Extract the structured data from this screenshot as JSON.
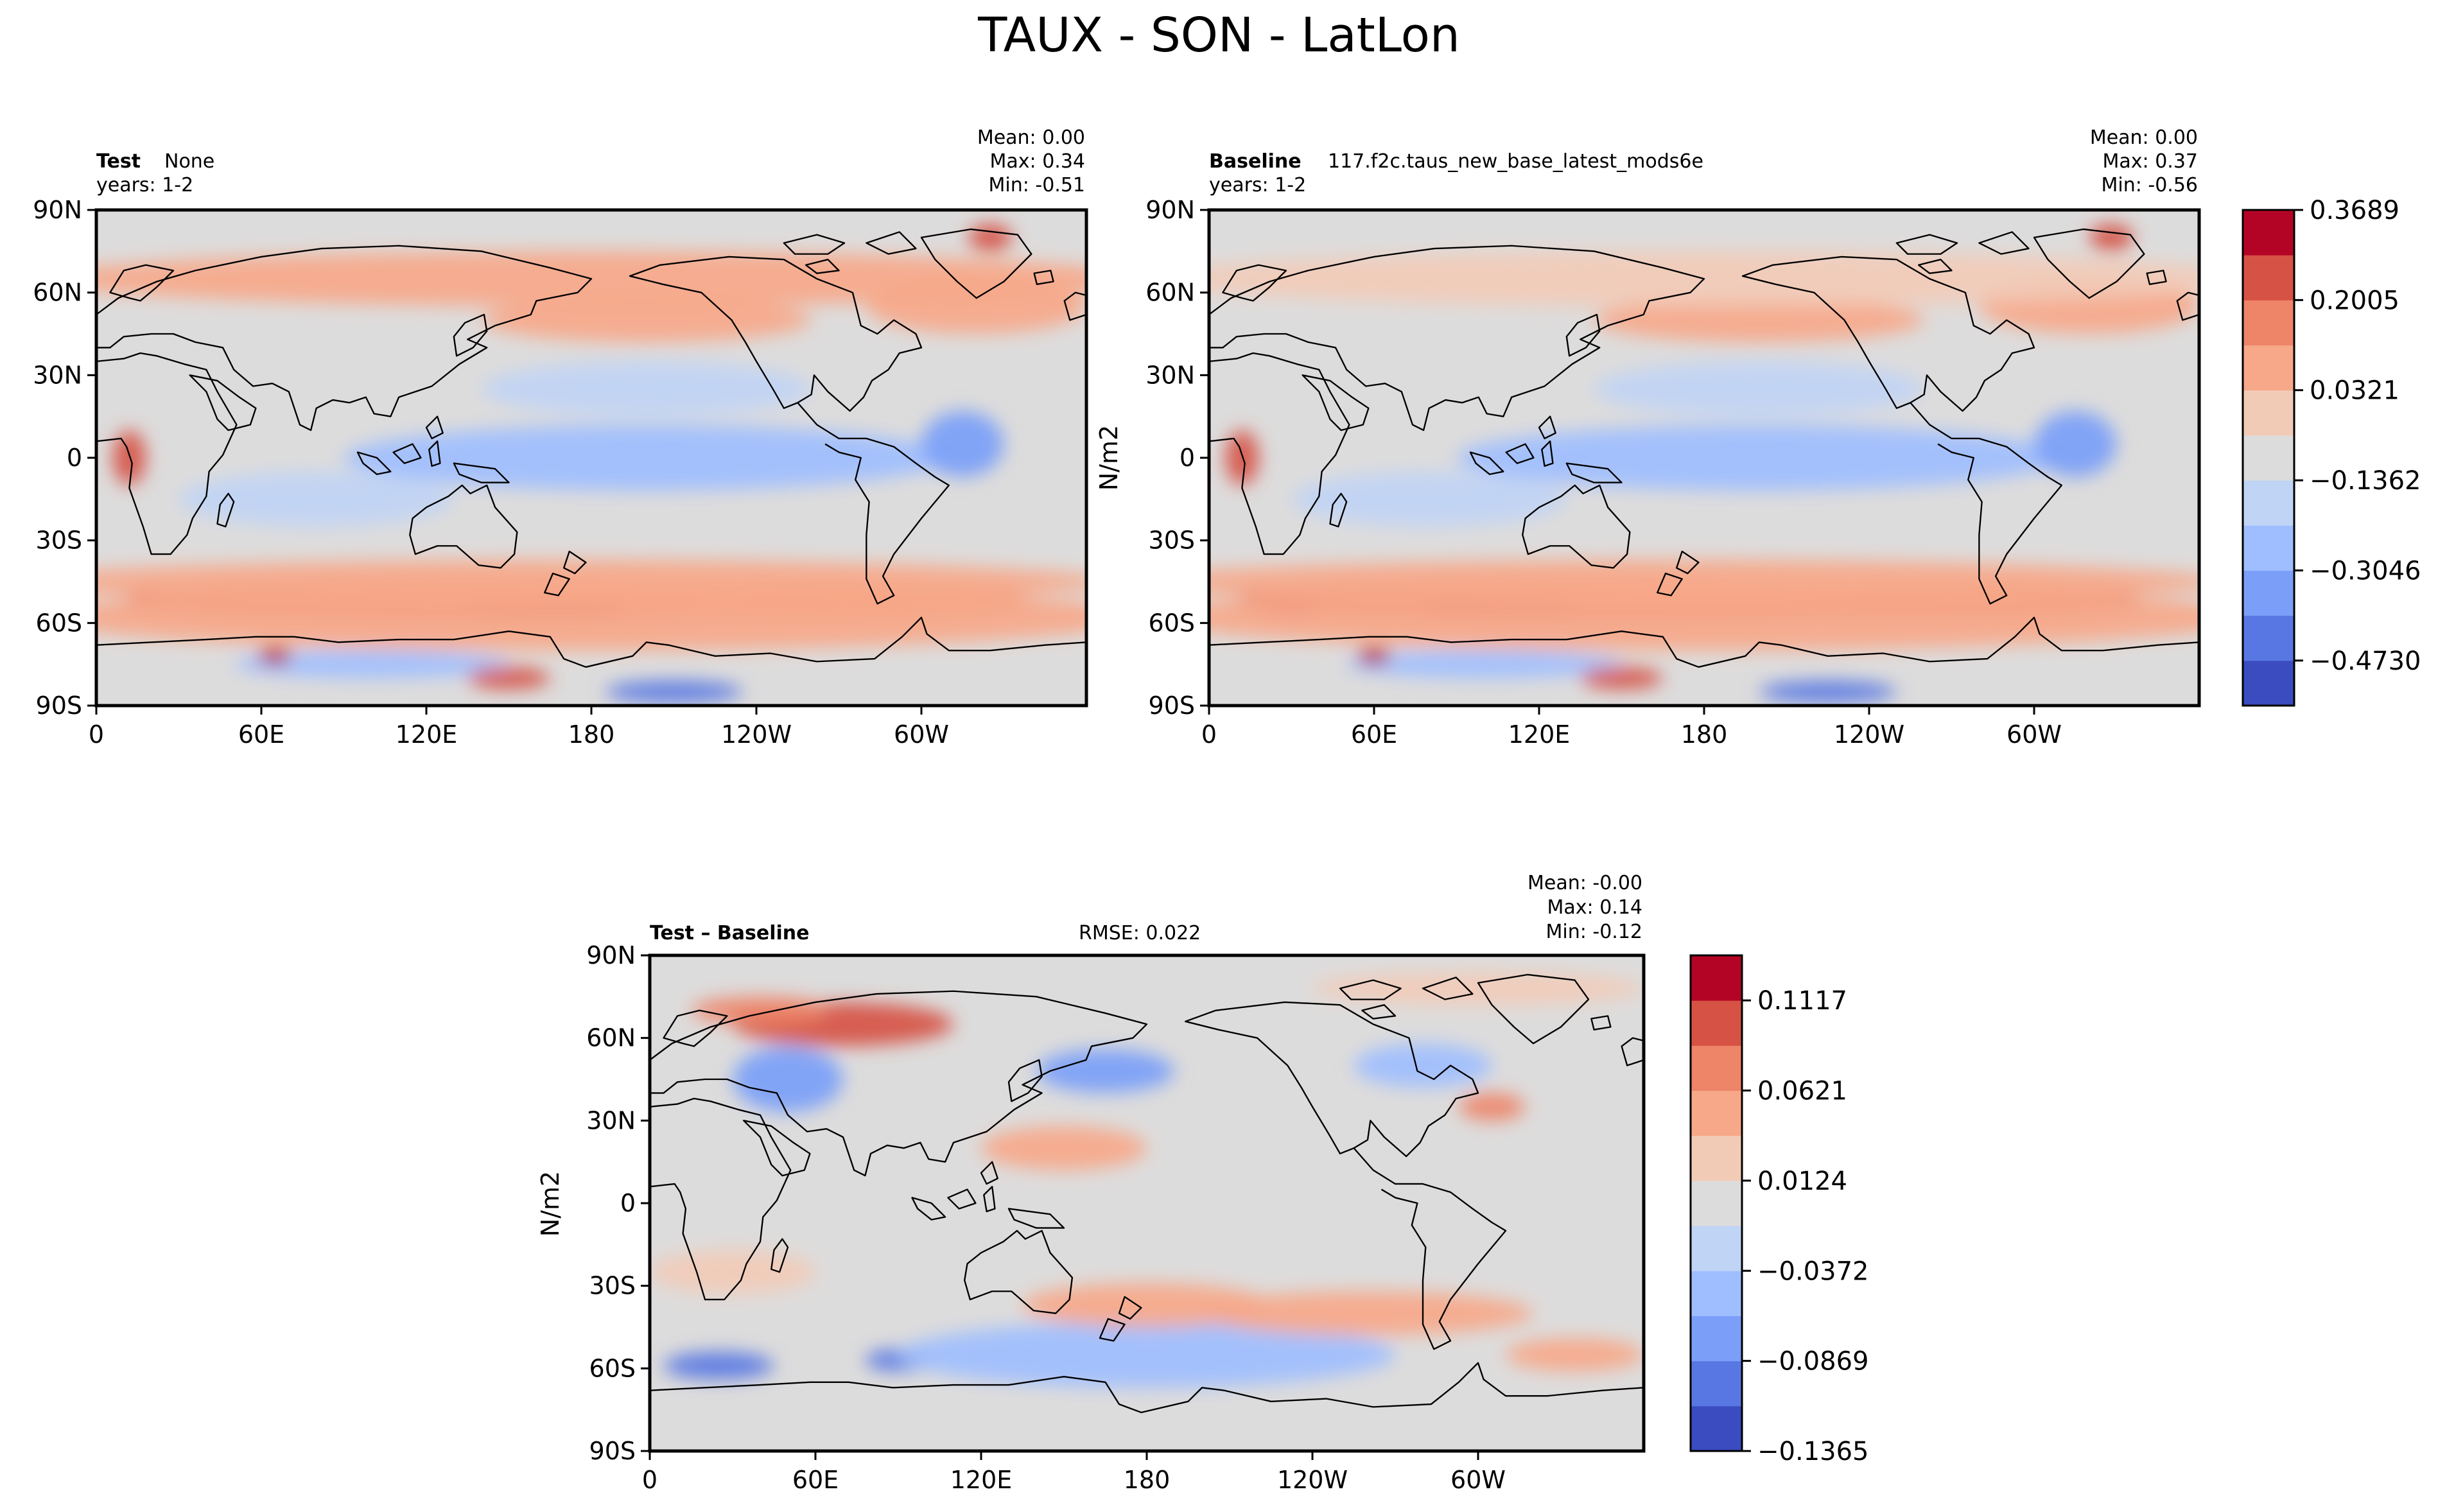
{
  "figure": {
    "title": "TAUX - SON - LatLon"
  },
  "chart_data": [
    {
      "type": "heatmap",
      "panel": "test",
      "label_bold": "Test",
      "label_text": "None",
      "years": "years: 1-2",
      "stats": {
        "mean": "Mean:  0.00",
        "max": "Max:  0.34",
        "min": "Min: -0.51"
      },
      "ylabel": "",
      "x_ticks": [
        "0",
        "60E",
        "120E",
        "180",
        "120W",
        "60W"
      ],
      "y_ticks": [
        "90N",
        "60N",
        "30N",
        "0",
        "30S",
        "60S",
        "90S"
      ],
      "xlim": [
        0,
        360
      ],
      "ylim": [
        -90,
        90
      ],
      "colormap": "coolwarm",
      "blobs": [
        {
          "lon": 140,
          "lat": -52,
          "rx": 130,
          "ry": 7,
          "v": 0.8
        },
        {
          "lon": 260,
          "lat": -52,
          "rx": 80,
          "ry": 6,
          "v": 0.65
        },
        {
          "lon": 165,
          "lat": -53,
          "rx": 30,
          "ry": 3,
          "v": 1.0
        },
        {
          "lon": 180,
          "lat": -58,
          "rx": 200,
          "ry": 12,
          "v": 0.35
        },
        {
          "lon": 170,
          "lat": -45,
          "rx": 200,
          "ry": 8,
          "v": 0.3
        },
        {
          "lon": 200,
          "lat": 50,
          "rx": 60,
          "ry": 8,
          "v": 0.45
        },
        {
          "lon": 320,
          "lat": 55,
          "rx": 40,
          "ry": 10,
          "v": 0.45
        },
        {
          "lon": 180,
          "lat": 65,
          "rx": 200,
          "ry": 10,
          "v": 0.3
        },
        {
          "lon": 200,
          "lat": 0,
          "rx": 110,
          "ry": 12,
          "v": -0.35
        },
        {
          "lon": 80,
          "lat": -15,
          "rx": 50,
          "ry": 10,
          "v": -0.3
        },
        {
          "lon": 200,
          "lat": 25,
          "rx": 60,
          "ry": 10,
          "v": -0.3
        },
        {
          "lon": 210,
          "lat": -85,
          "rx": 25,
          "ry": 4,
          "v": -0.75
        },
        {
          "lon": 100,
          "lat": -75,
          "rx": 50,
          "ry": 5,
          "v": -0.5
        },
        {
          "lon": 150,
          "lat": -80,
          "rx": 15,
          "ry": 4,
          "v": 0.7
        },
        {
          "lon": 65,
          "lat": -72,
          "rx": 6,
          "ry": 3,
          "v": 0.9
        },
        {
          "lon": 315,
          "lat": 5,
          "rx": 15,
          "ry": 12,
          "v": -0.6
        },
        {
          "lon": 12,
          "lat": 0,
          "rx": 6,
          "ry": 10,
          "v": 0.7
        },
        {
          "lon": 325,
          "lat": 80,
          "rx": 8,
          "ry": 5,
          "v": 0.7
        }
      ]
    },
    {
      "type": "heatmap",
      "panel": "baseline",
      "label_bold": "Baseline",
      "label_text": "117.f2c.taus_new_base_latest_mods6e",
      "years": "years: 1-2",
      "stats": {
        "mean": "Mean:  0.00",
        "max": "Max:  0.37",
        "min": "Min: -0.56"
      },
      "ylabel": "N/m2",
      "x_ticks": [
        "0",
        "60E",
        "120E",
        "180",
        "120W",
        "60W"
      ],
      "y_ticks": [
        "90N",
        "60N",
        "30N",
        "0",
        "30S",
        "60S",
        "90S"
      ],
      "xlim": [
        0,
        360
      ],
      "ylim": [
        -90,
        90
      ],
      "colormap": "coolwarm",
      "blobs": [
        {
          "lon": 140,
          "lat": -52,
          "rx": 130,
          "ry": 7,
          "v": 0.8
        },
        {
          "lon": 260,
          "lat": -52,
          "rx": 80,
          "ry": 6,
          "v": 0.7
        },
        {
          "lon": 95,
          "lat": -52,
          "rx": 18,
          "ry": 4,
          "v": 1.0
        },
        {
          "lon": 30,
          "lat": -54,
          "rx": 10,
          "ry": 3,
          "v": 1.0
        },
        {
          "lon": 118,
          "lat": -53,
          "rx": 14,
          "ry": 3,
          "v": 1.0
        },
        {
          "lon": 180,
          "lat": -58,
          "rx": 200,
          "ry": 12,
          "v": 0.35
        },
        {
          "lon": 170,
          "lat": -45,
          "rx": 200,
          "ry": 8,
          "v": 0.3
        },
        {
          "lon": 200,
          "lat": 50,
          "rx": 60,
          "ry": 8,
          "v": 0.45
        },
        {
          "lon": 320,
          "lat": 55,
          "rx": 40,
          "ry": 10,
          "v": 0.4
        },
        {
          "lon": 180,
          "lat": 65,
          "rx": 200,
          "ry": 10,
          "v": 0.25
        },
        {
          "lon": 200,
          "lat": 0,
          "rx": 110,
          "ry": 12,
          "v": -0.35
        },
        {
          "lon": 80,
          "lat": -15,
          "rx": 50,
          "ry": 10,
          "v": -0.3
        },
        {
          "lon": 200,
          "lat": 25,
          "rx": 60,
          "ry": 10,
          "v": -0.3
        },
        {
          "lon": 225,
          "lat": -85,
          "rx": 25,
          "ry": 4,
          "v": -0.75
        },
        {
          "lon": 100,
          "lat": -75,
          "rx": 50,
          "ry": 5,
          "v": -0.5
        },
        {
          "lon": 150,
          "lat": -80,
          "rx": 15,
          "ry": 4,
          "v": 0.75
        },
        {
          "lon": 60,
          "lat": -72,
          "rx": 6,
          "ry": 3,
          "v": 0.9
        },
        {
          "lon": 315,
          "lat": 5,
          "rx": 15,
          "ry": 12,
          "v": -0.6
        },
        {
          "lon": 12,
          "lat": 0,
          "rx": 6,
          "ry": 10,
          "v": 0.7
        },
        {
          "lon": 328,
          "lat": 80,
          "rx": 8,
          "ry": 5,
          "v": 0.7
        }
      ]
    },
    {
      "type": "heatmap",
      "panel": "diff",
      "label_bold": "Test – Baseline",
      "label_text": "",
      "years": "",
      "rmse": "RMSE: 0.022",
      "stats": {
        "mean": "Mean: -0.00",
        "max": "Max:  0.14",
        "min": "Min: -0.12"
      },
      "ylabel": "N/m2",
      "x_ticks": [
        "0",
        "60E",
        "120E",
        "180",
        "120W",
        "60W"
      ],
      "y_ticks": [
        "90N",
        "60N",
        "30N",
        "0",
        "30S",
        "60S",
        "90S"
      ],
      "xlim": [
        0,
        360
      ],
      "ylim": [
        -90,
        90
      ],
      "colormap": "coolwarm",
      "blobs": [
        {
          "lon": 70,
          "lat": 65,
          "rx": 40,
          "ry": 8,
          "v": 0.85
        },
        {
          "lon": 40,
          "lat": 70,
          "rx": 25,
          "ry": 5,
          "v": 0.55
        },
        {
          "lon": 50,
          "lat": 45,
          "rx": 20,
          "ry": 12,
          "v": -0.55
        },
        {
          "lon": 165,
          "lat": 48,
          "rx": 25,
          "ry": 8,
          "v": -0.55
        },
        {
          "lon": 25,
          "lat": -59,
          "rx": 20,
          "ry": 5,
          "v": -0.85
        },
        {
          "lon": 90,
          "lat": -57,
          "rx": 12,
          "ry": 4,
          "v": -0.75
        },
        {
          "lon": 180,
          "lat": -55,
          "rx": 90,
          "ry": 12,
          "v": -0.35
        },
        {
          "lon": 180,
          "lat": -37,
          "rx": 45,
          "ry": 8,
          "v": 0.4
        },
        {
          "lon": 305,
          "lat": 35,
          "rx": 12,
          "ry": 5,
          "v": 0.6
        },
        {
          "lon": 150,
          "lat": 20,
          "rx": 30,
          "ry": 8,
          "v": 0.3
        },
        {
          "lon": 260,
          "lat": -40,
          "rx": 60,
          "ry": 8,
          "v": 0.3
        },
        {
          "lon": 300,
          "lat": 78,
          "rx": 60,
          "ry": 6,
          "v": 0.25
        },
        {
          "lon": 280,
          "lat": 50,
          "rx": 25,
          "ry": 8,
          "v": -0.35
        },
        {
          "lon": 30,
          "lat": -25,
          "rx": 30,
          "ry": 8,
          "v": 0.25
        },
        {
          "lon": 335,
          "lat": -55,
          "rx": 25,
          "ry": 6,
          "v": 0.35
        }
      ]
    }
  ],
  "colorbars": [
    {
      "name": "main",
      "ticks": [
        "0.3689",
        "0.2005",
        "0.0321",
        "−0.1362",
        "−0.3046",
        "−0.4730"
      ],
      "colors": [
        "#3b4cc0",
        "#5977e3",
        "#7b9ff9",
        "#9ebeff",
        "#c0d4f5",
        "#dddcdc",
        "#f2cbb7",
        "#f7a889",
        "#ee8468",
        "#d65244",
        "#b40426"
      ]
    },
    {
      "name": "diff",
      "ticks": [
        "0.1117",
        "0.0621",
        "0.0124",
        "−0.0372",
        "−0.0869",
        "−0.1365"
      ],
      "colors": [
        "#3b4cc0",
        "#5977e3",
        "#7b9ff9",
        "#9ebeff",
        "#c0d4f5",
        "#dddcdc",
        "#f2cbb7",
        "#f7a889",
        "#ee8468",
        "#d65244",
        "#b40426"
      ]
    }
  ]
}
